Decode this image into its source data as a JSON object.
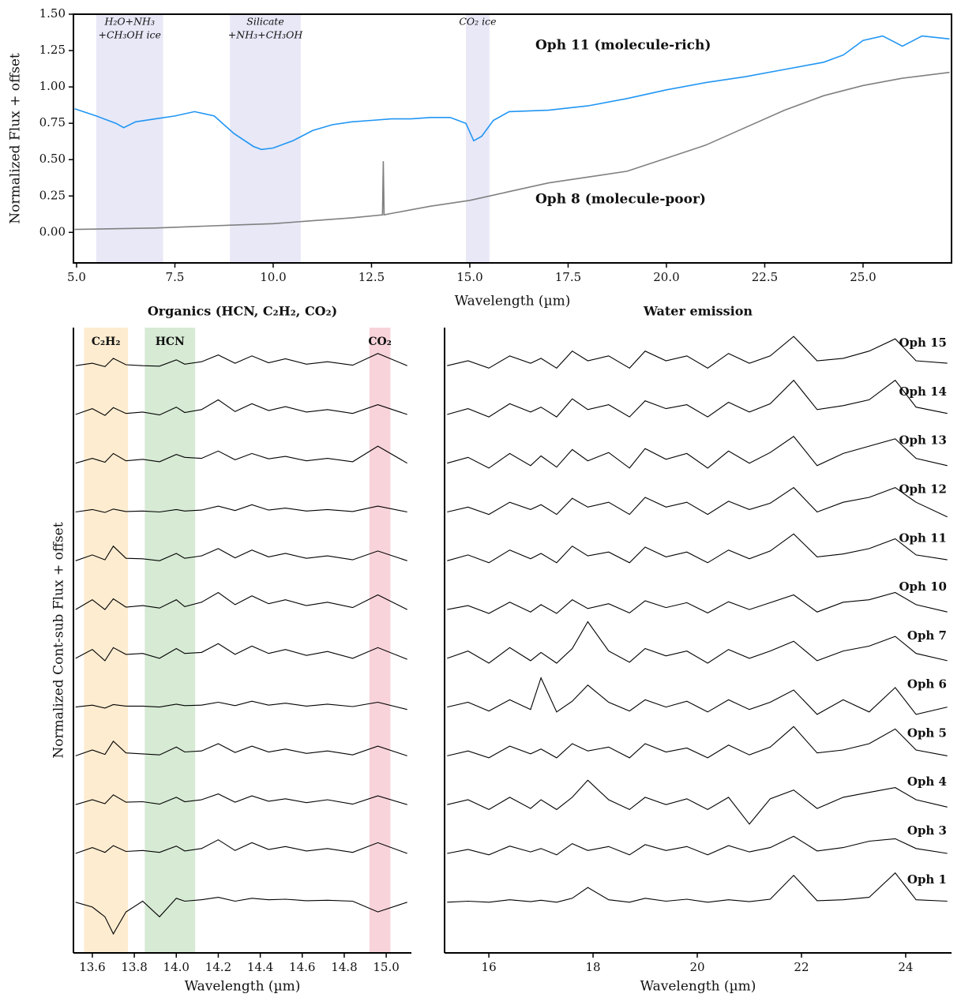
{
  "chart_data": [
    {
      "type": "line",
      "xlabel": "Wavelength (µm)",
      "ylabel": "Normalized Flux + offset",
      "xlim": [
        4.92,
        27.25
      ],
      "ylim": [
        -0.21,
        1.5
      ],
      "xticks": [
        {
          "value": 5,
          "label": "5.0"
        },
        7.5,
        {
          "value": 10,
          "label": "10.0"
        },
        12.5,
        {
          "value": 15,
          "label": "15.0"
        },
        17.5,
        {
          "value": 20,
          "label": "20.0"
        },
        22.5,
        {
          "value": 25,
          "label": "25.0"
        }
      ],
      "yticks": [
        {
          "value": 0,
          "label": "0.00"
        },
        {
          "value": 0.25,
          "label": "0.25"
        },
        {
          "value": 0.5,
          "label": "0.50"
        },
        {
          "value": 0.75,
          "label": "0.75"
        },
        {
          "value": 1,
          "label": "1.00"
        },
        {
          "value": 1.25,
          "label": "1.25"
        },
        {
          "value": 1.5,
          "label": "1.50"
        }
      ],
      "frame": "box",
      "bands": [
        {
          "range": [
            5.5,
            7.2
          ],
          "color": "#e4e4f6",
          "text_color": "#7a7f8c",
          "label_lines": [
            "H₂O+NH₃",
            "+CH₃OH ice"
          ]
        },
        {
          "range": [
            8.9,
            10.7
          ],
          "color": "#e4e4f6",
          "text_color": "#7a7f8c",
          "label_lines": [
            "Silicate",
            "+NH₃+CH₃OH"
          ]
        },
        {
          "range": [
            14.9,
            15.5
          ],
          "color": "#e4e4f6",
          "text_color": "#7a7f8c",
          "label_lines": [
            "CO₂ ice"
          ]
        }
      ],
      "series": [
        {
          "name": "Oph 11 (molecule-rich)",
          "color": "#2196f3",
          "x": [
            4.95,
            5.5,
            6.0,
            6.2,
            6.5,
            7.0,
            7.5,
            8.0,
            8.5,
            9.0,
            9.5,
            9.7,
            10.0,
            10.5,
            11.0,
            11.5,
            12.0,
            12.5,
            13.0,
            13.5,
            14.0,
            14.5,
            14.9,
            15.1,
            15.3,
            15.6,
            16.0,
            17.0,
            18.0,
            19.0,
            20.0,
            21.0,
            22.0,
            23.0,
            24.0,
            24.5,
            25.0,
            25.5,
            26.0,
            26.5,
            27.2
          ],
          "values": [
            0.85,
            0.8,
            0.75,
            0.72,
            0.76,
            0.78,
            0.8,
            0.83,
            0.8,
            0.68,
            0.59,
            0.57,
            0.58,
            0.63,
            0.7,
            0.74,
            0.76,
            0.77,
            0.78,
            0.78,
            0.79,
            0.79,
            0.75,
            0.63,
            0.66,
            0.77,
            0.83,
            0.84,
            0.87,
            0.92,
            0.98,
            1.03,
            1.07,
            1.12,
            1.17,
            1.22,
            1.32,
            1.35,
            1.28,
            1.35,
            1.33
          ]
        },
        {
          "name": "Oph 8 (molecule-poor)",
          "color": "#808080",
          "x": [
            4.95,
            6.0,
            7.0,
            8.0,
            9.0,
            10.0,
            11.0,
            12.0,
            12.78,
            12.8,
            12.82,
            13.0,
            14.0,
            15.0,
            16.0,
            17.0,
            18.0,
            19.0,
            20.0,
            21.0,
            22.0,
            23.0,
            24.0,
            25.0,
            26.0,
            27.2
          ],
          "values": [
            0.02,
            0.025,
            0.03,
            0.04,
            0.05,
            0.06,
            0.08,
            0.1,
            0.12,
            0.49,
            0.12,
            0.13,
            0.18,
            0.22,
            0.28,
            0.34,
            0.38,
            0.42,
            0.51,
            0.6,
            0.72,
            0.84,
            0.94,
            1.01,
            1.06,
            1.1
          ]
        }
      ]
    },
    {
      "type": "line",
      "title": "Organics (HCN, C₂H₂, CO₂)",
      "xlabel": "Wavelength (µm)",
      "ylabel": "Normalized Cont-sub Flux + offset",
      "xlim": [
        13.51,
        15.12
      ],
      "ylim": [
        -1.04,
        11.78
      ],
      "xticks": [
        13.6,
        13.8,
        {
          "value": 14,
          "label": "14.0"
        },
        14.2,
        14.4,
        14.6,
        14.8,
        {
          "value": 15,
          "label": "15.0"
        }
      ],
      "frame": "open",
      "bands": [
        {
          "range": [
            13.56,
            13.77
          ],
          "color": "#fde9c8",
          "text_color": "#f5a623",
          "label_lines": [
            "C₂H₂"
          ]
        },
        {
          "range": [
            13.85,
            14.09
          ],
          "color": "#cfe6cc",
          "text_color": "#228b22",
          "label_lines": [
            "HCN"
          ]
        },
        {
          "range": [
            14.92,
            15.02
          ],
          "color": "#f7cbd3",
          "text_color": "#e0304e",
          "label_lines": [
            "CO₂"
          ]
        }
      ],
      "x": [
        13.52,
        13.6,
        13.66,
        13.7,
        13.76,
        13.84,
        13.92,
        14.0,
        14.04,
        14.12,
        14.2,
        14.28,
        14.36,
        14.44,
        14.52,
        14.62,
        14.72,
        14.84,
        14.96,
        15.1
      ],
      "series": [
        {
          "color": "#000000",
          "values": [
            11.0,
            11.05,
            10.98,
            11.15,
            11.02,
            11.0,
            10.99,
            11.12,
            11.03,
            11.08,
            11.22,
            11.05,
            11.2,
            11.06,
            11.14,
            11.03,
            11.08,
            11.01,
            11.25,
            11.0
          ]
        },
        {
          "color": "#000000",
          "values": [
            10.0,
            10.12,
            9.98,
            10.14,
            10.02,
            10.05,
            9.99,
            10.15,
            10.04,
            10.1,
            10.3,
            10.06,
            10.22,
            10.08,
            10.16,
            10.05,
            10.1,
            10.02,
            10.2,
            10.0
          ]
        },
        {
          "color": "#000000",
          "values": [
            9.0,
            9.1,
            9.02,
            9.2,
            9.05,
            9.08,
            9.03,
            9.18,
            9.12,
            9.1,
            9.25,
            9.07,
            9.2,
            9.09,
            9.14,
            9.05,
            9.1,
            9.03,
            9.35,
            9.0
          ]
        },
        {
          "color": "#000000",
          "values": [
            8.0,
            8.05,
            7.99,
            8.06,
            8.01,
            8.02,
            8.0,
            8.05,
            8.02,
            8.04,
            8.12,
            8.03,
            8.15,
            8.04,
            8.08,
            8.02,
            8.05,
            8.01,
            8.12,
            8.0
          ]
        },
        {
          "color": "#000000",
          "values": [
            7.0,
            7.12,
            7.02,
            7.3,
            7.05,
            7.04,
            7.0,
            7.15,
            7.05,
            7.1,
            7.25,
            7.06,
            7.22,
            7.08,
            7.15,
            7.05,
            7.1,
            7.02,
            7.2,
            7.0
          ]
        },
        {
          "color": "#000000",
          "values": [
            6.0,
            6.2,
            6.0,
            6.22,
            6.05,
            6.08,
            6.03,
            6.2,
            6.06,
            6.15,
            6.35,
            6.1,
            6.28,
            6.12,
            6.2,
            6.08,
            6.15,
            6.04,
            6.3,
            6.0
          ]
        },
        {
          "color": "#000000",
          "values": [
            5.0,
            5.18,
            4.95,
            5.22,
            5.08,
            5.1,
            5.0,
            5.2,
            5.1,
            5.12,
            5.3,
            5.08,
            5.25,
            5.1,
            5.18,
            5.06,
            5.14,
            5.0,
            5.22,
            4.98
          ]
        },
        {
          "color": "#000000",
          "values": [
            4.0,
            4.04,
            3.98,
            4.05,
            4.02,
            4.02,
            4.0,
            4.06,
            4.03,
            4.04,
            4.1,
            4.03,
            4.12,
            4.04,
            4.08,
            4.02,
            4.06,
            4.01,
            4.1,
            3.95
          ]
        },
        {
          "color": "#000000",
          "values": [
            3.0,
            3.12,
            3.03,
            3.3,
            3.06,
            3.04,
            3.02,
            3.18,
            3.08,
            3.1,
            3.25,
            3.07,
            3.2,
            3.08,
            3.14,
            3.05,
            3.1,
            3.02,
            3.2,
            3.0
          ]
        },
        {
          "color": "#000000",
          "values": [
            2.0,
            2.1,
            2.02,
            2.2,
            2.05,
            2.06,
            2.01,
            2.15,
            2.06,
            2.1,
            2.22,
            2.05,
            2.18,
            2.07,
            2.12,
            2.04,
            2.1,
            2.01,
            2.18,
            2.0
          ]
        },
        {
          "color": "#000000",
          "values": [
            1.0,
            1.12,
            1.02,
            1.16,
            1.04,
            1.06,
            1.02,
            1.15,
            1.05,
            1.1,
            1.28,
            1.06,
            1.22,
            1.08,
            1.14,
            1.05,
            1.1,
            1.02,
            1.22,
            1.0
          ]
        },
        {
          "color": "#000000",
          "values": [
            0.0,
            -0.1,
            -0.3,
            -0.65,
            -0.2,
            0.02,
            -0.3,
            0.08,
            0.02,
            0.05,
            0.1,
            0.02,
            0.08,
            0.05,
            0.06,
            0.03,
            0.04,
            0.02,
            -0.2,
            0.0
          ]
        }
      ]
    },
    {
      "type": "line",
      "title": "Water emission",
      "xlabel": "Wavelength (µm)",
      "xlim": [
        15.15,
        24.88
      ],
      "ylim": [
        -1.04,
        11.78
      ],
      "xticks": [
        16,
        18,
        20,
        22,
        24
      ],
      "frame": "open",
      "name_color": "#2196f3",
      "x": [
        15.2,
        15.6,
        16.0,
        16.4,
        16.8,
        17.0,
        17.3,
        17.6,
        17.9,
        18.3,
        18.7,
        19.0,
        19.4,
        19.8,
        20.2,
        20.6,
        21.0,
        21.4,
        21.85,
        22.3,
        22.8,
        23.3,
        23.8,
        24.2,
        24.8
      ],
      "series": [
        {
          "name": "Oph 15",
          "color": "#000000",
          "values": [
            11,
            11.1,
            10.95,
            11.2,
            11.05,
            11.15,
            10.95,
            11.3,
            11.1,
            11.2,
            10.95,
            11.3,
            11.1,
            11.2,
            10.95,
            11.25,
            11.05,
            11.2,
            11.6,
            11.1,
            11.15,
            11.3,
            11.55,
            11.1,
            11.05
          ]
        },
        {
          "name": "Oph 14",
          "color": "#000000",
          "values": [
            10,
            10.12,
            9.95,
            10.22,
            10.05,
            10.15,
            9.95,
            10.32,
            10.1,
            10.2,
            9.95,
            10.28,
            10.12,
            10.2,
            9.95,
            10.25,
            10.05,
            10.22,
            10.7,
            10.1,
            10.18,
            10.3,
            10.7,
            10.15,
            10.02
          ]
        },
        {
          "name": "Oph 13",
          "color": "#000000",
          "values": [
            9,
            9.12,
            8.9,
            9.2,
            8.95,
            9.15,
            8.92,
            9.28,
            9.05,
            9.22,
            8.9,
            9.3,
            9.08,
            9.2,
            8.9,
            9.25,
            9.0,
            9.22,
            9.55,
            8.95,
            9.2,
            9.35,
            9.5,
            9.1,
            8.95
          ]
        },
        {
          "name": "Oph 12",
          "color": "#000000",
          "values": [
            8,
            8.1,
            7.95,
            8.2,
            8.05,
            8.15,
            7.95,
            8.28,
            8.1,
            8.2,
            7.95,
            8.3,
            8.1,
            8.2,
            7.95,
            8.22,
            8.05,
            8.18,
            8.5,
            8.0,
            8.2,
            8.3,
            8.5,
            8.2,
            7.9
          ]
        },
        {
          "name": "Oph 11",
          "color": "#000000",
          "values": [
            7,
            7.12,
            6.96,
            7.22,
            7.04,
            7.15,
            6.96,
            7.3,
            7.1,
            7.18,
            6.96,
            7.28,
            7.08,
            7.18,
            6.96,
            7.22,
            7.04,
            7.2,
            7.55,
            7.08,
            7.14,
            7.25,
            7.45,
            7.12,
            7.02
          ]
        },
        {
          "name": "Oph 10",
          "color": "#000000",
          "values": [
            6,
            6.08,
            5.92,
            6.15,
            5.95,
            6.1,
            5.92,
            6.2,
            6.02,
            6.12,
            5.93,
            6.18,
            6.04,
            6.14,
            5.93,
            6.16,
            6.0,
            6.14,
            6.3,
            5.95,
            6.15,
            6.2,
            6.35,
            6.1,
            5.95
          ]
        },
        {
          "name": "Oph 7",
          "color": "#000000",
          "values": [
            5,
            5.15,
            4.9,
            5.22,
            4.95,
            5.12,
            4.9,
            5.2,
            5.75,
            5.15,
            4.92,
            5.2,
            5.05,
            5.15,
            4.9,
            5.18,
            5.0,
            5.15,
            5.35,
            4.95,
            5.15,
            5.25,
            5.45,
            5.1,
            4.95
          ]
        },
        {
          "name": "Oph 6",
          "color": "#000000",
          "values": [
            4,
            4.1,
            3.92,
            4.15,
            3.95,
            4.6,
            3.9,
            4.12,
            4.45,
            4.1,
            3.92,
            4.15,
            4.0,
            4.12,
            3.9,
            4.15,
            3.95,
            4.1,
            4.35,
            3.85,
            4.15,
            3.9,
            4.4,
            3.85,
            4.0
          ]
        },
        {
          "name": "Oph 5",
          "color": "#000000",
          "values": [
            3,
            3.1,
            2.96,
            3.2,
            3.04,
            3.14,
            2.96,
            3.25,
            3.1,
            3.18,
            2.96,
            3.25,
            3.08,
            3.16,
            2.96,
            3.22,
            3.02,
            3.18,
            3.6,
            3.06,
            3.12,
            3.25,
            3.55,
            3.12,
            3.0
          ]
        },
        {
          "name": "Oph 4",
          "color": "#000000",
          "values": [
            2,
            2.1,
            1.9,
            2.15,
            1.92,
            2.1,
            1.9,
            2.15,
            2.5,
            2.1,
            1.9,
            2.15,
            2.0,
            2.12,
            1.9,
            2.15,
            1.6,
            2.12,
            2.3,
            1.92,
            2.15,
            2.25,
            2.35,
            2.1,
            1.95
          ]
        },
        {
          "name": "Oph 3",
          "color": "#000000",
          "values": [
            1,
            1.08,
            0.97,
            1.15,
            1.03,
            1.1,
            0.97,
            1.2,
            1.06,
            1.14,
            0.97,
            1.18,
            1.06,
            1.14,
            0.97,
            1.16,
            1.03,
            1.12,
            1.35,
            1.05,
            1.12,
            1.25,
            1.3,
            1.1,
            1.0
          ]
        },
        {
          "name": "Oph 1",
          "color": "#000000",
          "values": [
            0,
            0.02,
            0.0,
            0.05,
            0.01,
            0.04,
            0.0,
            0.08,
            0.3,
            0.05,
            0.0,
            0.08,
            0.02,
            0.06,
            0.0,
            0.05,
            0.01,
            0.06,
            0.55,
            0.03,
            0.05,
            0.1,
            0.6,
            0.05,
            0.02
          ]
        }
      ]
    }
  ]
}
